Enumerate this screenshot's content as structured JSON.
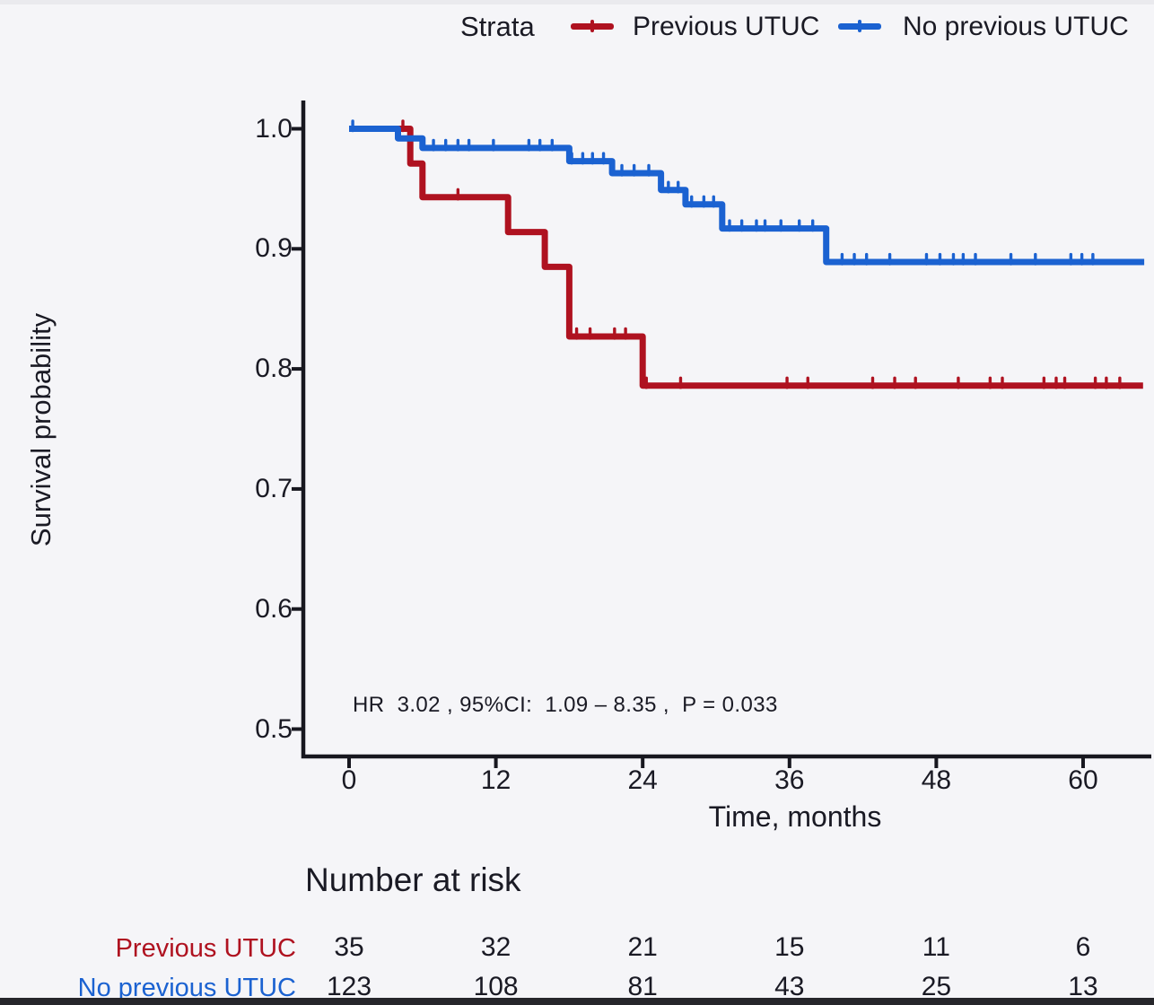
{
  "colors": {
    "previous_utuc": "#AF1220",
    "no_previous_utuc": "#1B62D1",
    "axis": "#17171f",
    "text": "#1a1a24",
    "background": "#f5f5f8",
    "bottom_bar": "#26262b"
  },
  "legend": {
    "title": "Strata",
    "items": [
      {
        "label": "Previous UTUC",
        "color": "#AF1220"
      },
      {
        "label": "No previous UTUC",
        "color": "#1B62D1"
      }
    ]
  },
  "annotation": "HR  3.02 , 95%CI:  1.09 – 8.35 ,  P = 0.033",
  "risk_table": {
    "title": "Number at risk",
    "rows": [
      {
        "label": "Previous UTUC",
        "color": "#AF1220",
        "values": [
          "35",
          "32",
          "21",
          "15",
          "11",
          "6"
        ]
      },
      {
        "label": "No previous UTUC",
        "color": "#1B62D1",
        "values": [
          "123",
          "108",
          "81",
          "43",
          "25",
          "13"
        ]
      }
    ]
  },
  "chart_data": {
    "type": "line",
    "subtype": "kaplan_meier_step",
    "title": "",
    "xlabel": "Time, months",
    "ylabel": "Survival probability",
    "xlim": [
      -3.7,
      65.6
    ],
    "ylim": [
      0.477,
      1.022
    ],
    "x_ticks": [
      0,
      12,
      24,
      36,
      48,
      60
    ],
    "x_tick_labels": [
      "0",
      "12",
      "24",
      "36",
      "48",
      "60"
    ],
    "y_ticks": [
      1.0,
      0.9,
      0.8,
      0.7,
      0.6,
      0.5
    ],
    "y_tick_labels": [
      "1.0",
      "0.9",
      "0.8",
      "0.7",
      "0.6",
      "0.5"
    ],
    "grid": false,
    "legend_position": "top",
    "annotation": "HR 3.02 , 95%CI: 1.09 – 8.35 , P = 0.033",
    "series": [
      {
        "name": "Previous UTUC",
        "color": "#AF1220",
        "steps": [
          [
            0,
            1.0
          ],
          [
            5,
            0.971
          ],
          [
            6,
            0.943
          ],
          [
            13,
            0.914
          ],
          [
            16,
            0.885
          ],
          [
            18,
            0.827
          ],
          [
            24,
            0.786
          ]
        ],
        "end_time": 64.9,
        "censor_marks": [
          [
            4.4,
            1.0
          ],
          [
            8.9,
            0.943
          ],
          [
            18.6,
            0.827
          ],
          [
            19.7,
            0.827
          ],
          [
            21.7,
            0.827
          ],
          [
            22.6,
            0.827
          ],
          [
            24.3,
            0.786
          ],
          [
            27.1,
            0.786
          ],
          [
            35.8,
            0.786
          ],
          [
            37.5,
            0.786
          ],
          [
            42.8,
            0.786
          ],
          [
            44.6,
            0.786
          ],
          [
            46.3,
            0.786
          ],
          [
            49.8,
            0.786
          ],
          [
            52.4,
            0.786
          ],
          [
            53.4,
            0.786
          ],
          [
            56.8,
            0.786
          ],
          [
            57.8,
            0.786
          ],
          [
            58.5,
            0.786
          ],
          [
            61.0,
            0.786
          ],
          [
            61.9,
            0.786
          ],
          [
            63.0,
            0.786
          ]
        ]
      },
      {
        "name": "No previous UTUC",
        "color": "#1B62D1",
        "steps": [
          [
            0,
            1.0
          ],
          [
            4,
            0.992
          ],
          [
            6,
            0.984
          ],
          [
            18,
            0.973
          ],
          [
            21.5,
            0.963
          ],
          [
            25.5,
            0.949
          ],
          [
            27.5,
            0.937
          ],
          [
            30.5,
            0.917
          ],
          [
            39,
            0.889
          ]
        ],
        "end_time": 65.0,
        "censor_marks": [
          [
            0.3,
            1.0
          ],
          [
            6.9,
            0.984
          ],
          [
            7.9,
            0.984
          ],
          [
            8.9,
            0.984
          ],
          [
            9.8,
            0.984
          ],
          [
            11.8,
            0.984
          ],
          [
            14.7,
            0.984
          ],
          [
            15.6,
            0.984
          ],
          [
            16.6,
            0.984
          ],
          [
            18.2,
            0.973
          ],
          [
            19.1,
            0.973
          ],
          [
            19.9,
            0.973
          ],
          [
            20.8,
            0.973
          ],
          [
            22.3,
            0.963
          ],
          [
            23.3,
            0.963
          ],
          [
            24.5,
            0.963
          ],
          [
            26.1,
            0.949
          ],
          [
            26.9,
            0.949
          ],
          [
            28.0,
            0.937
          ],
          [
            29.0,
            0.937
          ],
          [
            29.8,
            0.937
          ],
          [
            31.1,
            0.917
          ],
          [
            32.1,
            0.917
          ],
          [
            33.3,
            0.917
          ],
          [
            34.0,
            0.917
          ],
          [
            35.3,
            0.917
          ],
          [
            36.8,
            0.917
          ],
          [
            37.9,
            0.917
          ],
          [
            40.3,
            0.889
          ],
          [
            41.3,
            0.889
          ],
          [
            42.3,
            0.889
          ],
          [
            44.2,
            0.889
          ],
          [
            47.2,
            0.889
          ],
          [
            48.3,
            0.889
          ],
          [
            49.4,
            0.889
          ],
          [
            50.2,
            0.889
          ],
          [
            51.2,
            0.889
          ],
          [
            54.1,
            0.889
          ],
          [
            56.1,
            0.889
          ],
          [
            59.0,
            0.889
          ],
          [
            59.9,
            0.889
          ],
          [
            60.8,
            0.889
          ]
        ]
      }
    ],
    "risk_table": {
      "title": "Number at risk",
      "time_points": [
        0,
        12,
        24,
        36,
        48,
        60
      ],
      "rows": [
        {
          "name": "Previous UTUC",
          "counts": [
            35,
            32,
            21,
            15,
            11,
            6
          ]
        },
        {
          "name": "No previous UTUC",
          "counts": [
            123,
            108,
            81,
            43,
            25,
            13
          ]
        }
      ]
    }
  }
}
